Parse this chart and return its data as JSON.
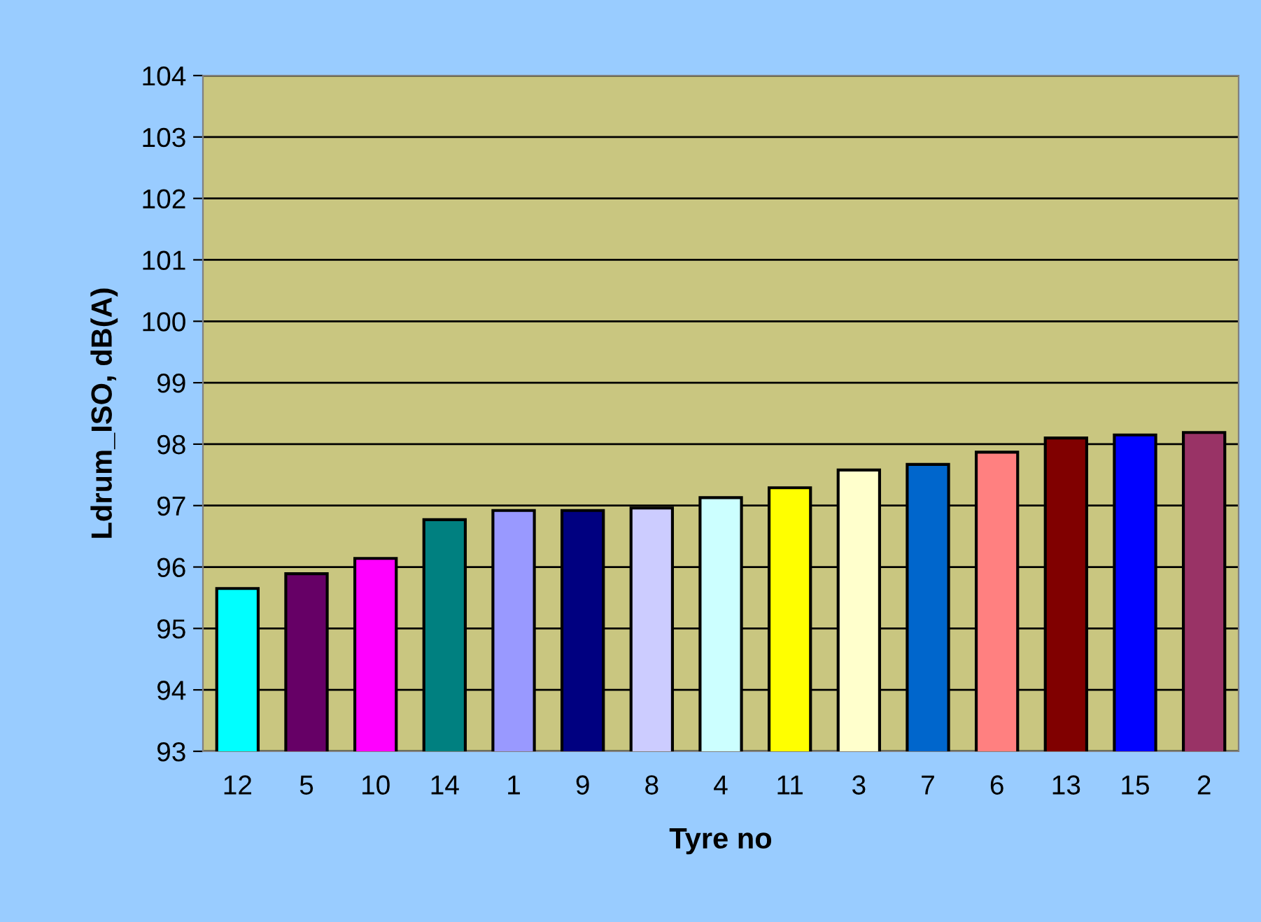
{
  "chart_data": {
    "type": "bar",
    "xlabel": "Tyre no",
    "ylabel": "Ldrum_ISO, dB(A)",
    "categories": [
      "12",
      "5",
      "10",
      "14",
      "1",
      "9",
      "8",
      "4",
      "11",
      "3",
      "7",
      "6",
      "13",
      "15",
      "2"
    ],
    "values": [
      95.65,
      95.89,
      96.14,
      96.77,
      96.92,
      96.92,
      96.96,
      97.13,
      97.29,
      97.58,
      97.67,
      97.87,
      98.1,
      98.15,
      98.19
    ],
    "colors": [
      "#00ffff",
      "#660066",
      "#ff00ff",
      "#008080",
      "#9999ff",
      "#000080",
      "#ccccff",
      "#ccffff",
      "#ffff00",
      "#ffffcc",
      "#0066cc",
      "#ff8080",
      "#800000",
      "#0000ff",
      "#993366"
    ],
    "ylim": [
      93,
      104
    ],
    "yticks": [
      93,
      94,
      95,
      96,
      97,
      98,
      99,
      100,
      101,
      102,
      103,
      104
    ],
    "grid": "y",
    "legend": false
  }
}
